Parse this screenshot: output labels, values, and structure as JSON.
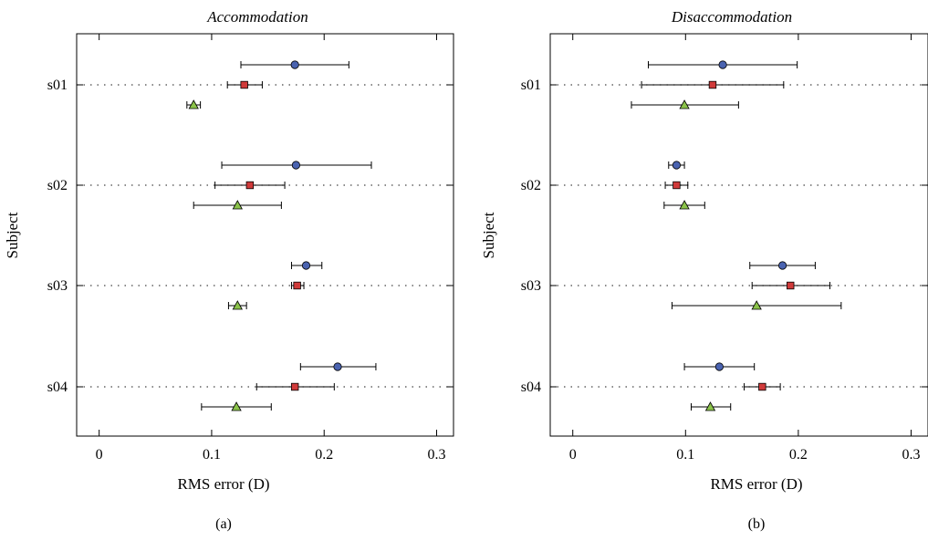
{
  "chart_data": [
    {
      "type": "scatter",
      "panel_label": "(a)",
      "title": "Accommodation",
      "xlabel": "RMS error (D)",
      "ylabel": "Subject",
      "xlim": [
        -0.02,
        0.315
      ],
      "xticks": [
        "0",
        "0.1",
        "0.2",
        "0.3"
      ],
      "categories": [
        "s01",
        "s02",
        "s03",
        "s04"
      ],
      "grid": "dotted horizontal at subject ticks",
      "legend": "none",
      "series": [
        {
          "marker": "circle",
          "color": "#4a63b0",
          "points": [
            {
              "subject": "s01",
              "value": 0.174,
              "low": 0.126,
              "high": 0.222
            },
            {
              "subject": "s02",
              "value": 0.175,
              "low": 0.109,
              "high": 0.242
            },
            {
              "subject": "s03",
              "value": 0.184,
              "low": 0.171,
              "high": 0.198
            },
            {
              "subject": "s04",
              "value": 0.212,
              "low": 0.179,
              "high": 0.246
            }
          ]
        },
        {
          "marker": "square",
          "color": "#d03a3a",
          "points": [
            {
              "subject": "s01",
              "value": 0.129,
              "low": 0.114,
              "high": 0.145
            },
            {
              "subject": "s02",
              "value": 0.134,
              "low": 0.103,
              "high": 0.165
            },
            {
              "subject": "s03",
              "value": 0.176,
              "low": 0.171,
              "high": 0.182
            },
            {
              "subject": "s04",
              "value": 0.174,
              "low": 0.14,
              "high": 0.209
            }
          ]
        },
        {
          "marker": "triangle",
          "color": "#8bc34a",
          "points": [
            {
              "subject": "s01",
              "value": 0.084,
              "low": 0.078,
              "high": 0.09
            },
            {
              "subject": "s02",
              "value": 0.123,
              "low": 0.084,
              "high": 0.162
            },
            {
              "subject": "s03",
              "value": 0.123,
              "low": 0.115,
              "high": 0.131
            },
            {
              "subject": "s04",
              "value": 0.122,
              "low": 0.091,
              "high": 0.153
            }
          ]
        }
      ]
    },
    {
      "type": "scatter",
      "panel_label": "(b)",
      "title": "Disaccommodation",
      "xlabel": "RMS error (D)",
      "ylabel": "Subject",
      "xlim": [
        -0.02,
        0.315
      ],
      "xticks": [
        "0",
        "0.1",
        "0.2",
        "0.3"
      ],
      "categories": [
        "s01",
        "s02",
        "s03",
        "s04"
      ],
      "grid": "dotted horizontal at subject ticks",
      "legend": "none",
      "series": [
        {
          "marker": "circle",
          "color": "#4a63b0",
          "points": [
            {
              "subject": "s01",
              "value": 0.133,
              "low": 0.067,
              "high": 0.199
            },
            {
              "subject": "s02",
              "value": 0.092,
              "low": 0.085,
              "high": 0.099
            },
            {
              "subject": "s03",
              "value": 0.186,
              "low": 0.157,
              "high": 0.215
            },
            {
              "subject": "s04",
              "value": 0.13,
              "low": 0.099,
              "high": 0.161
            }
          ]
        },
        {
          "marker": "square",
          "color": "#d03a3a",
          "points": [
            {
              "subject": "s01",
              "value": 0.124,
              "low": 0.061,
              "high": 0.187
            },
            {
              "subject": "s02",
              "value": 0.092,
              "low": 0.082,
              "high": 0.102
            },
            {
              "subject": "s03",
              "value": 0.193,
              "low": 0.159,
              "high": 0.228
            },
            {
              "subject": "s04",
              "value": 0.168,
              "low": 0.152,
              "high": 0.184
            }
          ]
        },
        {
          "marker": "triangle",
          "color": "#8bc34a",
          "points": [
            {
              "subject": "s01",
              "value": 0.099,
              "low": 0.052,
              "high": 0.147
            },
            {
              "subject": "s02",
              "value": 0.099,
              "low": 0.081,
              "high": 0.117
            },
            {
              "subject": "s03",
              "value": 0.163,
              "low": 0.088,
              "high": 0.238
            },
            {
              "subject": "s04",
              "value": 0.122,
              "low": 0.105,
              "high": 0.14
            }
          ]
        }
      ]
    }
  ]
}
